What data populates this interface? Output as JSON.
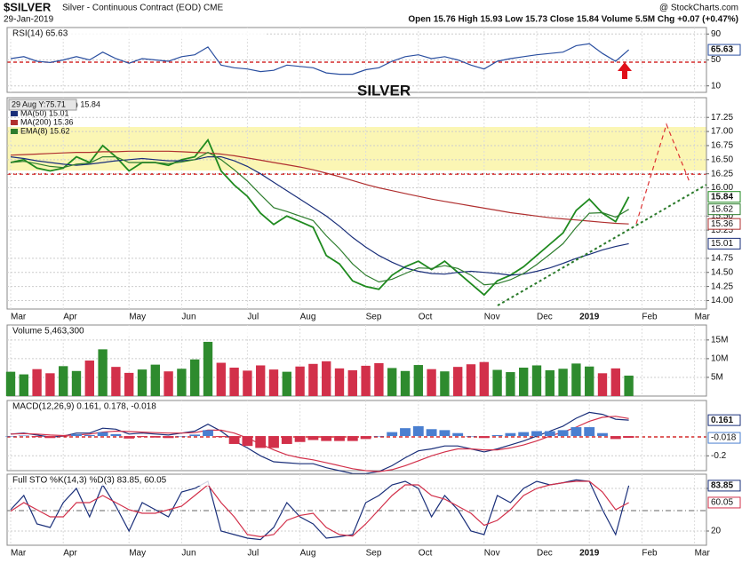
{
  "header": {
    "symbol": "$SILVER",
    "name": "Silver - Continuous Contract (EOD) CME",
    "date": "29-Jan-2019",
    "brand": "@ StockCharts.com",
    "quote": "Open 15.76 High 15.93 Low 15.73 Close 15.84 Volume 5.5M Chg +0.07 (+0.47%)"
  },
  "chart_data": [
    {
      "type": "line",
      "title": "RSI(14) 65.63",
      "annotations": [
        "SILVER",
        "29 Aug Y:75.71"
      ],
      "ylim": [
        0,
        100
      ],
      "yticks": [
        10,
        50,
        90
      ],
      "series": [
        {
          "name": "RSI(14)",
          "color": "#2a4fa0",
          "tag": true,
          "values": [
            52,
            55,
            48,
            46,
            50,
            55,
            50,
            62,
            52,
            45,
            52,
            50,
            48,
            55,
            58,
            70,
            42,
            38,
            36,
            32,
            34,
            42,
            40,
            38,
            30,
            28,
            28,
            35,
            38,
            48,
            55,
            58,
            52,
            55,
            50,
            42,
            36,
            48,
            52,
            55,
            58,
            60,
            62,
            72,
            75,
            60,
            48,
            65.63
          ]
        }
      ]
    },
    {
      "type": "line",
      "ylim": [
        13.85,
        17.6
      ],
      "yticks": [
        17.25,
        {
          "value": 17,
          "label": "17.00"
        },
        16.75,
        {
          "value": 16.5,
          "label": "16.50"
        },
        16.25,
        {
          "value": 16,
          "label": "16.00"
        },
        {
          "value": 15.5,
          "label": "15.50"
        },
        15.25,
        14.75,
        {
          "value": 14.5,
          "label": "14.50"
        },
        14.25,
        {
          "value": 14,
          "label": "14.00"
        }
      ],
      "categories": [
        "Mar",
        null,
        null,
        null,
        "Apr",
        null,
        null,
        null,
        null,
        "May",
        null,
        null,
        null,
        "Jun",
        null,
        null,
        null,
        null,
        "Jul",
        null,
        null,
        null,
        "Aug",
        null,
        null,
        null,
        null,
        "Sep",
        null,
        null,
        null,
        "Oct",
        null,
        null,
        null,
        null,
        "Nov",
        null,
        null,
        null,
        "Dec",
        null,
        null,
        null,
        "2019",
        null,
        null,
        null,
        "Feb",
        null,
        null,
        null,
        "Mar"
      ],
      "series": [
        {
          "name": "$SILVER (Daily) 15.84",
          "color": "#1f8a1f",
          "tag": true,
          "values": [
            16.45,
            16.5,
            16.35,
            16.3,
            16.35,
            16.55,
            16.45,
            16.75,
            16.55,
            16.3,
            16.45,
            16.45,
            16.4,
            16.5,
            16.55,
            16.85,
            16.3,
            16.05,
            15.85,
            15.55,
            15.35,
            15.5,
            15.4,
            15.3,
            14.8,
            14.65,
            14.35,
            14.25,
            14.2,
            14.45,
            14.6,
            14.7,
            14.55,
            14.7,
            14.5,
            14.3,
            14.1,
            14.35,
            14.45,
            14.6,
            14.8,
            15,
            15.2,
            15.6,
            15.8,
            15.55,
            15.4,
            15.84,
            null,
            null,
            null,
            null,
            null
          ]
        },
        {
          "name": "MA(50) 15.01",
          "color": "#1a2f7a",
          "tag": true,
          "values": [
            16.55,
            16.52,
            16.48,
            16.45,
            16.42,
            16.4,
            16.42,
            16.45,
            16.48,
            16.5,
            16.52,
            16.5,
            16.48,
            16.48,
            16.5,
            16.55,
            16.55,
            16.48,
            16.38,
            16.25,
            16.1,
            15.95,
            15.8,
            15.65,
            15.5,
            15.32,
            15.12,
            14.95,
            14.8,
            14.68,
            14.58,
            14.52,
            14.48,
            14.47,
            14.5,
            14.52,
            14.5,
            14.48,
            14.45,
            14.47,
            14.52,
            14.58,
            14.66,
            14.75,
            14.82,
            14.9,
            14.96,
            15.01,
            null,
            null,
            null,
            null,
            null
          ]
        },
        {
          "name": "MA(200) 15.36",
          "color": "#b03030",
          "tag": true,
          "values": [
            16.58,
            16.59,
            16.6,
            16.61,
            16.62,
            16.63,
            16.63,
            16.64,
            16.64,
            16.65,
            16.65,
            16.65,
            16.65,
            16.64,
            16.63,
            16.62,
            16.6,
            16.57,
            16.53,
            16.49,
            16.45,
            16.41,
            16.37,
            16.32,
            16.26,
            16.2,
            16.13,
            16.06,
            16,
            15.95,
            15.9,
            15.85,
            15.8,
            15.76,
            15.72,
            15.68,
            15.64,
            15.6,
            15.56,
            15.53,
            15.5,
            15.47,
            15.45,
            15.43,
            15.41,
            15.39,
            15.37,
            15.36,
            null,
            null,
            null,
            null,
            null
          ]
        },
        {
          "name": "EMA(8) 15.62",
          "color": "#2e7d2e",
          "tag": true,
          "values": [
            16.45,
            16.47,
            16.43,
            16.38,
            16.36,
            16.42,
            16.44,
            16.55,
            16.55,
            16.45,
            16.45,
            16.45,
            16.43,
            16.46,
            16.5,
            16.63,
            16.5,
            16.32,
            16.12,
            15.88,
            15.65,
            15.58,
            15.5,
            15.42,
            15.15,
            14.92,
            14.65,
            14.45,
            14.33,
            14.38,
            14.48,
            14.58,
            14.57,
            14.62,
            14.57,
            14.45,
            14.28,
            14.3,
            14.37,
            14.48,
            14.64,
            14.82,
            15.01,
            15.3,
            15.55,
            15.56,
            15.48,
            15.62,
            null,
            null,
            null,
            null,
            null
          ]
        }
      ]
    },
    {
      "type": "bar",
      "title": "Volume 5,463,300",
      "ylim": [
        0,
        19000000
      ],
      "yticks": [
        {
          "value": 5000000,
          "label": "5M"
        },
        {
          "value": 10000000,
          "label": "10M"
        },
        {
          "value": 15000000,
          "label": "15M"
        }
      ],
      "up_color": "#2e8b2e",
      "down_color": "#d2304a",
      "series": [
        {
          "name": "Volume",
          "values": [
            6500000,
            5800000,
            7200000,
            6100000,
            8000000,
            6700000,
            9500000,
            12500000,
            7800000,
            6200000,
            7100000,
            8400000,
            6600000,
            7300000,
            9800000,
            14500000,
            8900000,
            7600000,
            6800000,
            8200000,
            7100000,
            6500000,
            7900000,
            8600000,
            9300000,
            7400000,
            6900000,
            8100000,
            8800000,
            7500000,
            6700000,
            8300000,
            7200000,
            6600000,
            7800000,
            8500000,
            9100000,
            7000000,
            6400000,
            7600000,
            8200000,
            6900000,
            7300000,
            8700000,
            7900000,
            6100000,
            7400000,
            5463300
          ]
        }
      ]
    },
    {
      "type": "line",
      "title": "MACD(12,26,9) 0.161, 0.178, -0.018",
      "ylim": [
        -0.35,
        0.36
      ],
      "yticks": [
        -0.2
      ],
      "series": [
        {
          "name": "MACD",
          "color": "#1a2f7a",
          "tag": true,
          "values": [
            0.02,
            0.03,
            0.01,
            -0.01,
            0,
            0.03,
            0.03,
            0.08,
            0.07,
            0.02,
            0.03,
            0.02,
            0.01,
            0.03,
            0.05,
            0.12,
            0.05,
            -0.05,
            -0.12,
            -0.2,
            -0.26,
            -0.27,
            -0.28,
            -0.28,
            -0.32,
            -0.35,
            -0.38,
            -0.38,
            -0.36,
            -0.3,
            -0.22,
            -0.15,
            -0.13,
            -0.1,
            -0.1,
            -0.13,
            -0.16,
            -0.13,
            -0.09,
            -0.05,
            0,
            0.05,
            0.1,
            0.18,
            0.24,
            0.22,
            0.17,
            0.161
          ]
        },
        {
          "name": "Signal",
          "color": "#d2304a",
          "values": [
            0.02,
            0.025,
            0.02,
            0.01,
            0.005,
            0.01,
            0.02,
            0.04,
            0.05,
            0.045,
            0.04,
            0.035,
            0.03,
            0.03,
            0.035,
            0.06,
            0.06,
            0.03,
            -0.02,
            -0.08,
            -0.14,
            -0.19,
            -0.22,
            -0.24,
            -0.27,
            -0.3,
            -0.33,
            -0.35,
            -0.36,
            -0.34,
            -0.3,
            -0.25,
            -0.2,
            -0.16,
            -0.13,
            -0.13,
            -0.14,
            -0.14,
            -0.12,
            -0.09,
            -0.05,
            0,
            0.04,
            0.09,
            0.15,
            0.19,
            0.2,
            0.178
          ]
        },
        {
          "name": "Histogram",
          "type": "bar",
          "color": "#4a7fd0",
          "down_color": "#d2304a",
          "tag": true,
          "values": [
            0,
            0.005,
            -0.01,
            -0.02,
            -0.005,
            0.02,
            0.01,
            0.04,
            0.02,
            -0.025,
            -0.01,
            -0.015,
            -0.02,
            0,
            0.015,
            0.06,
            -0.01,
            -0.08,
            -0.1,
            -0.12,
            -0.12,
            -0.08,
            -0.06,
            -0.04,
            -0.05,
            -0.05,
            -0.05,
            -0.03,
            0,
            0.04,
            0.08,
            0.1,
            0.07,
            0.06,
            0.03,
            0,
            -0.02,
            0.01,
            0.03,
            0.04,
            0.05,
            0.05,
            0.06,
            0.09,
            0.09,
            0.03,
            -0.03,
            -0.018
          ]
        }
      ]
    },
    {
      "type": "line",
      "title": "Full STO %K(14,3) %D(3) 83.85, 60.05",
      "ylim": [
        0,
        100
      ],
      "yticks": [
        20,
        80
      ],
      "categories": [
        "Mar",
        null,
        null,
        null,
        "Apr",
        null,
        null,
        null,
        null,
        "May",
        null,
        null,
        null,
        "Jun",
        null,
        null,
        null,
        null,
        "Jul",
        null,
        null,
        null,
        "Aug",
        null,
        null,
        null,
        null,
        "Sep",
        null,
        null,
        null,
        "Oct",
        null,
        null,
        null,
        null,
        "Nov",
        null,
        null,
        null,
        "Dec",
        null,
        null,
        null,
        "2019",
        null,
        null,
        null,
        "Feb",
        null,
        null,
        null,
        "Mar"
      ],
      "series": [
        {
          "name": "%K",
          "color": "#1a2f7a",
          "tag": true,
          "values": [
            50,
            70,
            30,
            25,
            60,
            80,
            40,
            85,
            55,
            20,
            60,
            50,
            40,
            75,
            80,
            90,
            20,
            15,
            10,
            8,
            25,
            60,
            40,
            30,
            10,
            12,
            15,
            60,
            70,
            85,
            90,
            80,
            40,
            70,
            50,
            20,
            15,
            70,
            60,
            80,
            90,
            85,
            88,
            92,
            90,
            50,
            15,
            83.85,
            null,
            null,
            null,
            null,
            null
          ]
        },
        {
          "name": "%D",
          "color": "#d2304a",
          "tag": true,
          "values": [
            48,
            60,
            50,
            40,
            40,
            60,
            60,
            70,
            60,
            50,
            45,
            45,
            50,
            55,
            70,
            85,
            60,
            40,
            15,
            12,
            15,
            35,
            42,
            45,
            25,
            15,
            13,
            30,
            50,
            70,
            85,
            85,
            70,
            65,
            55,
            45,
            28,
            35,
            50,
            70,
            80,
            85,
            88,
            90,
            90,
            75,
            50,
            60.05,
            null,
            null,
            null,
            null,
            null
          ]
        }
      ]
    }
  ]
}
